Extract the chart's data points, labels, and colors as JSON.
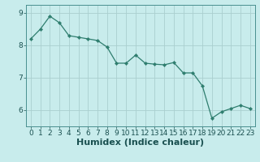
{
  "x": [
    0,
    1,
    2,
    3,
    4,
    5,
    6,
    7,
    8,
    9,
    10,
    11,
    12,
    13,
    14,
    15,
    16,
    17,
    18,
    19,
    20,
    21,
    22,
    23
  ],
  "y": [
    8.2,
    8.5,
    8.9,
    8.7,
    8.3,
    8.25,
    8.2,
    8.15,
    7.95,
    7.45,
    7.45,
    7.7,
    7.45,
    7.42,
    7.4,
    7.47,
    7.15,
    7.15,
    6.75,
    5.75,
    5.95,
    6.05,
    6.15,
    6.05
  ],
  "line_color": "#2e7d6e",
  "marker": "D",
  "marker_size": 2.2,
  "bg_color": "#c8ecec",
  "grid_color": "#aacfcf",
  "xlabel": "Humidex (Indice chaleur)",
  "ylim": [
    5.5,
    9.25
  ],
  "xlim": [
    -0.5,
    23.5
  ],
  "yticks": [
    6,
    7,
    8,
    9
  ],
  "xticks": [
    0,
    1,
    2,
    3,
    4,
    5,
    6,
    7,
    8,
    9,
    10,
    11,
    12,
    13,
    14,
    15,
    16,
    17,
    18,
    19,
    20,
    21,
    22,
    23
  ],
  "tick_label_size": 6.5,
  "xlabel_size": 8.0,
  "line_width": 0.9
}
